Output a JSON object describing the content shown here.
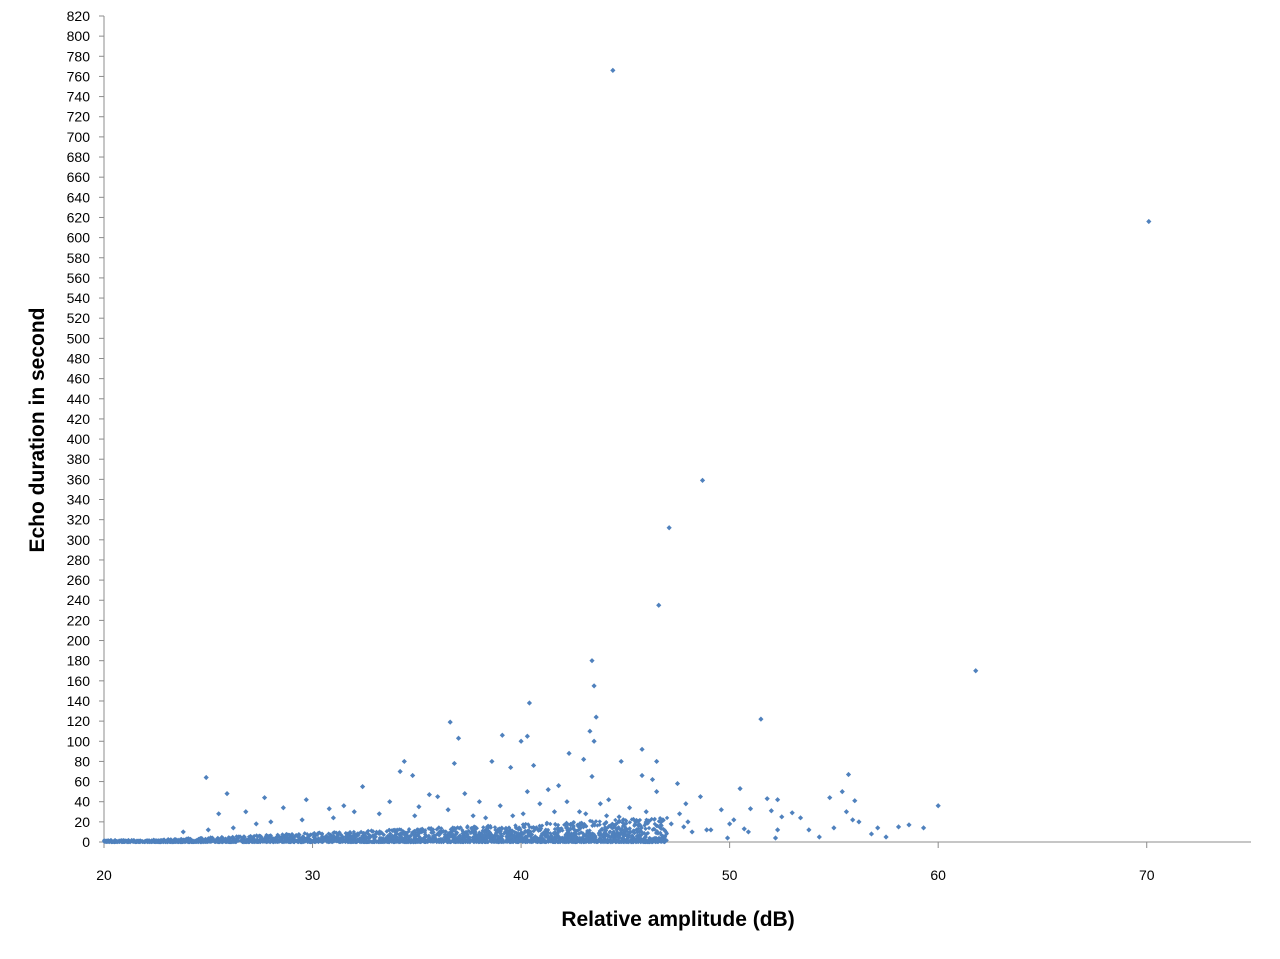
{
  "chart_data": {
    "type": "scatter",
    "xlabel": "Relative amplitude (dB)",
    "ylabel": "Echo duration in second",
    "xlim": [
      20,
      75
    ],
    "ylim": [
      0,
      820
    ],
    "x_ticks": [
      20,
      30,
      40,
      50,
      60,
      70
    ],
    "y_ticks": [
      0,
      20,
      40,
      60,
      80,
      100,
      120,
      140,
      160,
      180,
      200,
      220,
      240,
      260,
      280,
      300,
      320,
      340,
      360,
      380,
      400,
      420,
      440,
      460,
      480,
      500,
      520,
      540,
      560,
      580,
      600,
      620,
      640,
      660,
      680,
      700,
      720,
      740,
      760,
      780,
      800,
      820
    ],
    "grid": false,
    "legend": "none",
    "marker_color": "#4F81BD",
    "points": [
      [
        44.4,
        766
      ],
      [
        70.1,
        616
      ],
      [
        48.7,
        359
      ],
      [
        47.1,
        312
      ],
      [
        46.6,
        235
      ],
      [
        43.4,
        180
      ],
      [
        61.8,
        170
      ],
      [
        43.5,
        155
      ],
      [
        40.4,
        138
      ],
      [
        43.6,
        124
      ],
      [
        51.5,
        122
      ],
      [
        36.6,
        119
      ],
      [
        43.3,
        110
      ],
      [
        39.1,
        106
      ],
      [
        40.3,
        105
      ],
      [
        37.0,
        103
      ],
      [
        40.0,
        100
      ],
      [
        43.5,
        100
      ],
      [
        45.8,
        92
      ],
      [
        42.3,
        88
      ],
      [
        34.4,
        80
      ],
      [
        38.6,
        80
      ],
      [
        44.8,
        80
      ],
      [
        46.5,
        80
      ],
      [
        36.8,
        78
      ],
      [
        40.6,
        76
      ],
      [
        43.0,
        82
      ],
      [
        39.5,
        74
      ],
      [
        34.2,
        70
      ],
      [
        34.8,
        66
      ],
      [
        45.8,
        66
      ],
      [
        55.7,
        67
      ],
      [
        24.9,
        64
      ],
      [
        43.4,
        65
      ],
      [
        46.3,
        62
      ],
      [
        47.5,
        58
      ],
      [
        32.4,
        55
      ],
      [
        41.8,
        56
      ],
      [
        41.3,
        52
      ],
      [
        50.5,
        53
      ],
      [
        55.4,
        50
      ],
      [
        25.9,
        48
      ],
      [
        37.3,
        48
      ],
      [
        40.3,
        50
      ],
      [
        46.5,
        50
      ],
      [
        35.6,
        47
      ],
      [
        48.6,
        45
      ],
      [
        27.7,
        44
      ],
      [
        29.7,
        42
      ],
      [
        36.0,
        45
      ],
      [
        44.2,
        42
      ],
      [
        54.8,
        44
      ],
      [
        51.8,
        43
      ],
      [
        52.3,
        42
      ],
      [
        56.0,
        41
      ],
      [
        60.0,
        36
      ],
      [
        33.7,
        40
      ],
      [
        38.0,
        40
      ],
      [
        42.2,
        40
      ],
      [
        47.9,
        38
      ],
      [
        31.5,
        36
      ],
      [
        43.8,
        38
      ],
      [
        45.2,
        34
      ],
      [
        49.6,
        32
      ],
      [
        51.0,
        33
      ],
      [
        28.6,
        34
      ],
      [
        30.8,
        33
      ],
      [
        35.1,
        35
      ],
      [
        39.0,
        36
      ],
      [
        40.9,
        38
      ],
      [
        52.0,
        31
      ],
      [
        25.5,
        28
      ],
      [
        26.8,
        30
      ],
      [
        47.6,
        28
      ],
      [
        53.0,
        29
      ],
      [
        32.0,
        30
      ],
      [
        36.5,
        32
      ],
      [
        42.8,
        30
      ],
      [
        46.0,
        30
      ],
      [
        55.6,
        30
      ],
      [
        52.5,
        25
      ],
      [
        53.4,
        24
      ],
      [
        55.9,
        22
      ],
      [
        56.2,
        20
      ],
      [
        50.2,
        22
      ],
      [
        50.0,
        18
      ],
      [
        50.7,
        13
      ],
      [
        50.9,
        10
      ],
      [
        52.3,
        12
      ],
      [
        53.8,
        12
      ],
      [
        55.0,
        14
      ],
      [
        57.1,
        14
      ],
      [
        58.1,
        15
      ],
      [
        58.6,
        17
      ],
      [
        59.3,
        14
      ],
      [
        56.8,
        8
      ],
      [
        57.5,
        5
      ],
      [
        54.3,
        5
      ],
      [
        52.2,
        4
      ],
      [
        49.9,
        4
      ],
      [
        48.9,
        12
      ],
      [
        48.2,
        10
      ],
      [
        49.1,
        12
      ],
      [
        47.8,
        15
      ],
      [
        48.0,
        20
      ],
      [
        47.2,
        18
      ],
      [
        46.8,
        22
      ],
      [
        45.5,
        20
      ],
      [
        44.7,
        25
      ],
      [
        44.1,
        26
      ],
      [
        43.1,
        28
      ],
      [
        41.6,
        30
      ],
      [
        40.1,
        28
      ],
      [
        39.6,
        26
      ],
      [
        38.3,
        24
      ],
      [
        37.7,
        26
      ],
      [
        34.9,
        26
      ],
      [
        33.2,
        28
      ],
      [
        31.0,
        24
      ],
      [
        29.5,
        22
      ],
      [
        28.0,
        20
      ],
      [
        27.3,
        18
      ],
      [
        26.2,
        14
      ],
      [
        25.0,
        12
      ],
      [
        23.8,
        10
      ]
    ]
  }
}
